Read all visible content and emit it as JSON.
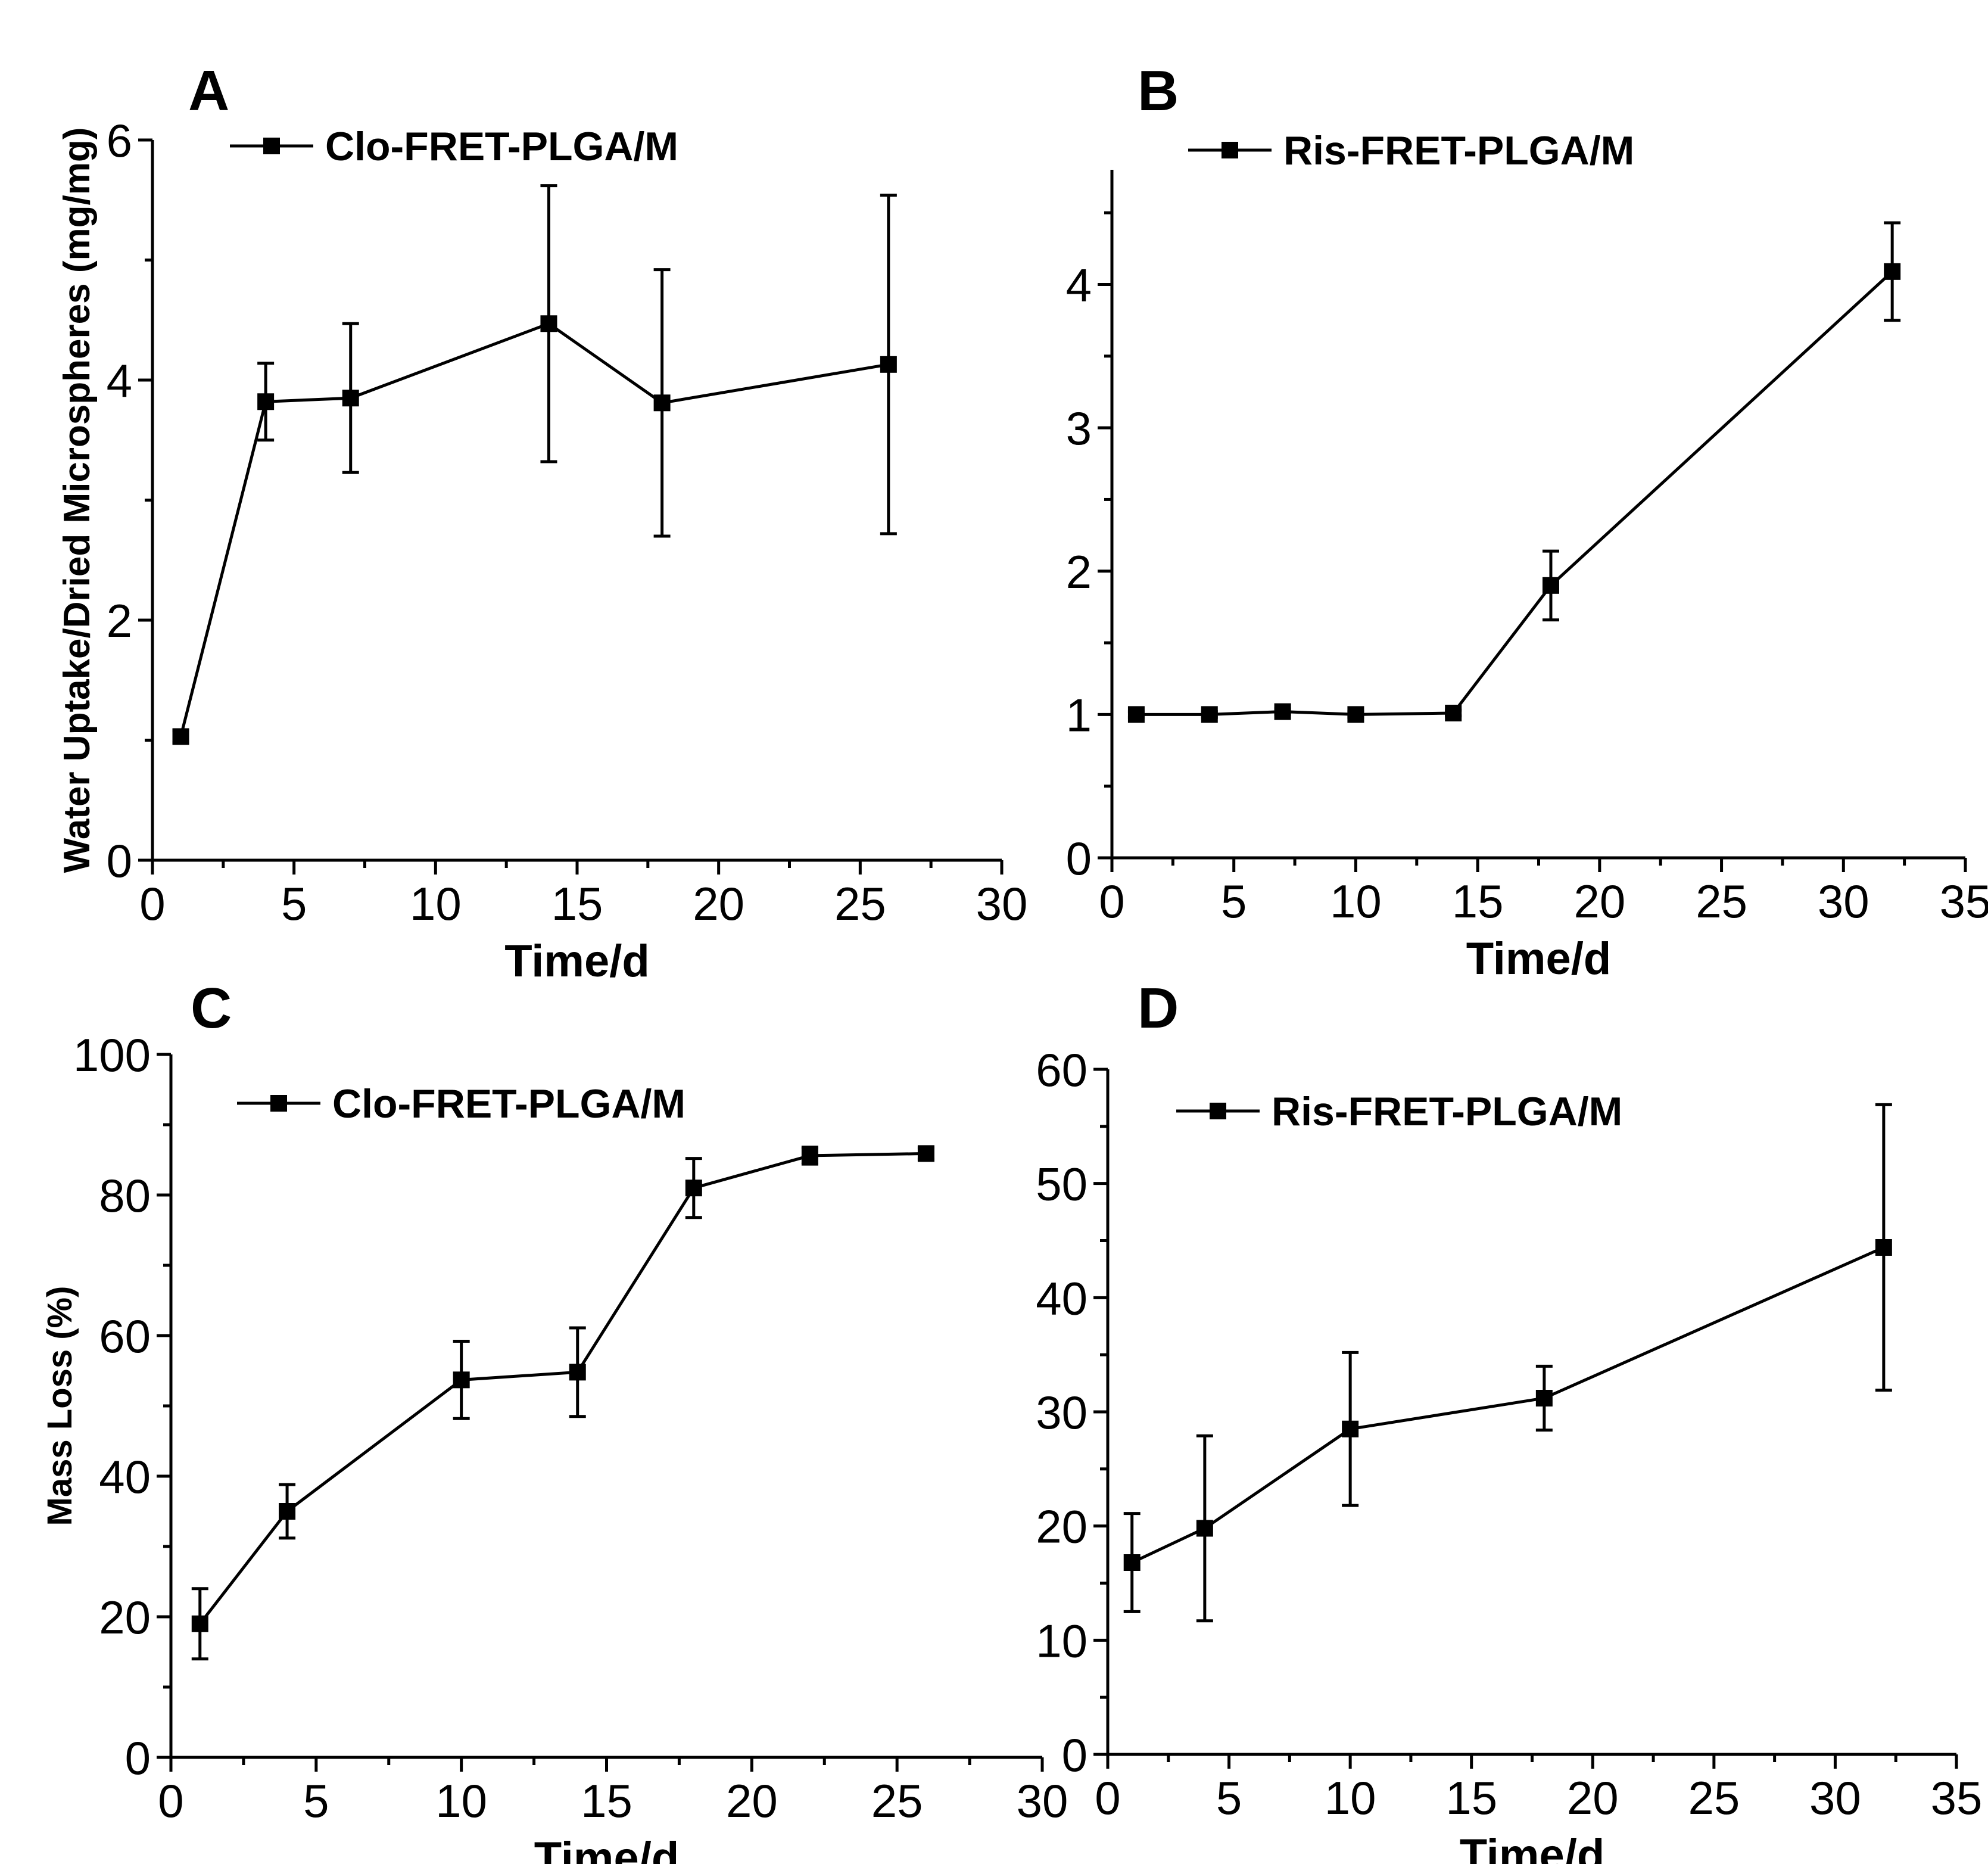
{
  "chart_data": [
    {
      "type": "line",
      "panel": "A",
      "xlabel": "Time/d",
      "ylabel": "Water Uptake/Dried Microspheres (mg/mg)",
      "xlim": [
        0,
        30
      ],
      "ylim": [
        0,
        6
      ],
      "xticks": [
        0,
        5,
        10,
        15,
        20,
        25,
        30
      ],
      "yticks": [
        0,
        2,
        4,
        6
      ],
      "legend_position": "top-left",
      "series": [
        {
          "name": "Clo-FRET-PLGA/M",
          "x": [
            1,
            4,
            7,
            14,
            18,
            26
          ],
          "y": [
            1.03,
            3.82,
            3.85,
            4.47,
            3.81,
            4.13
          ],
          "err": [
            0.05,
            0.32,
            0.62,
            1.15,
            1.11,
            1.41
          ]
        }
      ]
    },
    {
      "type": "line",
      "panel": "B",
      "xlabel": "Time/d",
      "ylabel": "",
      "xlim": [
        0,
        35
      ],
      "ylim": [
        0,
        4.8
      ],
      "xticks": [
        0,
        5,
        10,
        15,
        20,
        25,
        30,
        35
      ],
      "yticks": [
        0,
        1,
        2,
        3,
        4
      ],
      "legend_position": "top-left",
      "series": [
        {
          "name": "Ris-FRET-PLGA/M",
          "x": [
            1,
            4,
            7,
            10,
            14,
            18,
            32
          ],
          "y": [
            1.0,
            1.0,
            1.02,
            1.0,
            1.01,
            1.9,
            4.09
          ],
          "err": [
            0.02,
            0.02,
            0.02,
            0.02,
            0.02,
            0.24,
            0.34
          ]
        }
      ]
    },
    {
      "type": "line",
      "panel": "C",
      "xlabel": "Time/d",
      "ylabel": "Mass Loss (%)",
      "xlim": [
        0,
        30
      ],
      "ylim": [
        0,
        100
      ],
      "xticks": [
        0,
        5,
        10,
        15,
        20,
        25,
        30
      ],
      "yticks": [
        0,
        20,
        40,
        60,
        80,
        100
      ],
      "legend_position": "top-left",
      "series": [
        {
          "name": "Clo-FRET-PLGA/M",
          "x": [
            1,
            4,
            10,
            14,
            18,
            22,
            26
          ],
          "y": [
            19,
            35,
            53.7,
            54.8,
            81,
            85.6,
            85.9
          ],
          "err": [
            5,
            3.8,
            5.5,
            6.3,
            4.2,
            1.2,
            0.8
          ]
        }
      ]
    },
    {
      "type": "line",
      "panel": "D",
      "xlabel": "Time/d",
      "ylabel": "",
      "xlim": [
        0,
        35
      ],
      "ylim": [
        0,
        60
      ],
      "xticks": [
        0,
        5,
        10,
        15,
        20,
        25,
        30,
        35
      ],
      "yticks": [
        0,
        10,
        20,
        30,
        40,
        50,
        60
      ],
      "legend_position": "top-left",
      "series": [
        {
          "name": "Ris-FRET-PLGA/M",
          "x": [
            1,
            4,
            10,
            18,
            32
          ],
          "y": [
            16.8,
            19.8,
            28.5,
            31.2,
            44.4
          ],
          "err": [
            4.3,
            8.1,
            6.7,
            2.8,
            12.5
          ]
        }
      ]
    }
  ]
}
